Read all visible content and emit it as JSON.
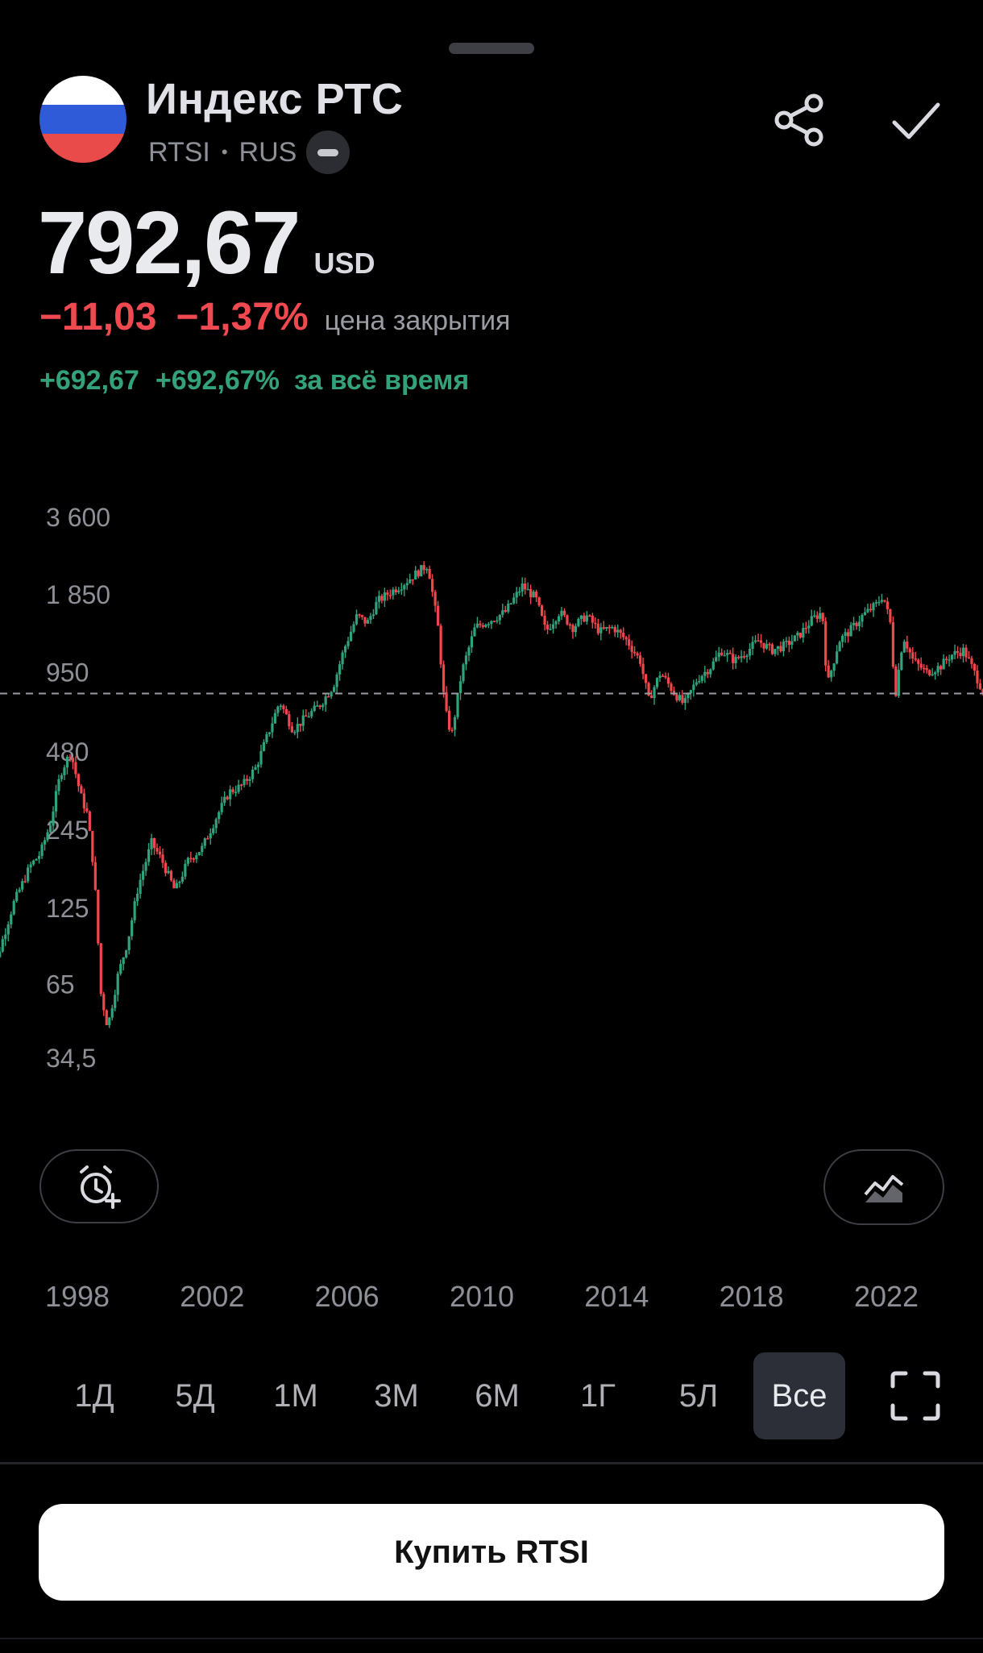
{
  "instrument": {
    "name": "Индекс РТС",
    "ticker": "RTSI",
    "separator": "•",
    "country": "RUS",
    "flag_colors": [
      "#ffffff",
      "#2f5bd8",
      "#e94a4a"
    ]
  },
  "header_actions": {
    "share_icon": "share-icon",
    "check_icon": "check-icon"
  },
  "price": {
    "value": "792,67",
    "currency": "USD"
  },
  "change": {
    "abs": "−11,03",
    "pct": "−1,37%",
    "label": "цена закрытия",
    "color": "#f0494f"
  },
  "alltime": {
    "abs": "+692,67",
    "pct": "+692,67%",
    "label": "за всё время",
    "color": "#33a27a"
  },
  "chart_data": {
    "type": "candlestick",
    "scale": "log",
    "y_ticks": [
      "3 600",
      "1 850",
      "950",
      "480",
      "245",
      "125",
      "65",
      "34,5"
    ],
    "y_tick_values": [
      3600,
      1850,
      950,
      480,
      245,
      125,
      65,
      34.5
    ],
    "x_ticks": [
      "1998",
      "2002",
      "2006",
      "2010",
      "2014",
      "2018",
      "2022"
    ],
    "reference_line": 792.67,
    "colors": {
      "up": "#2fa37d",
      "down": "#f0464c"
    },
    "series": [
      {
        "t": 1995.2,
        "v": 70
      },
      {
        "t": 1995.6,
        "v": 80
      },
      {
        "t": 1996.1,
        "v": 130
      },
      {
        "t": 1996.6,
        "v": 180
      },
      {
        "t": 1996.9,
        "v": 200
      },
      {
        "t": 1997.2,
        "v": 260
      },
      {
        "t": 1997.5,
        "v": 400
      },
      {
        "t": 1997.8,
        "v": 480
      },
      {
        "t": 1998.1,
        "v": 330
      },
      {
        "t": 1998.3,
        "v": 280
      },
      {
        "t": 1998.5,
        "v": 170
      },
      {
        "t": 1998.7,
        "v": 60
      },
      {
        "t": 1998.9,
        "v": 45
      },
      {
        "t": 1999.2,
        "v": 70
      },
      {
        "t": 1999.5,
        "v": 95
      },
      {
        "t": 1999.8,
        "v": 150
      },
      {
        "t": 2000.2,
        "v": 220
      },
      {
        "t": 2000.5,
        "v": 190
      },
      {
        "t": 2000.9,
        "v": 145
      },
      {
        "t": 2001.3,
        "v": 190
      },
      {
        "t": 2001.7,
        "v": 210
      },
      {
        "t": 2002.1,
        "v": 270
      },
      {
        "t": 2002.5,
        "v": 340
      },
      {
        "t": 2002.9,
        "v": 360
      },
      {
        "t": 2003.3,
        "v": 420
      },
      {
        "t": 2003.7,
        "v": 580
      },
      {
        "t": 2004.0,
        "v": 740
      },
      {
        "t": 2004.4,
        "v": 580
      },
      {
        "t": 2004.8,
        "v": 650
      },
      {
        "t": 2005.2,
        "v": 720
      },
      {
        "t": 2005.6,
        "v": 850
      },
      {
        "t": 2005.9,
        "v": 1150
      },
      {
        "t": 2006.3,
        "v": 1550
      },
      {
        "t": 2006.6,
        "v": 1450
      },
      {
        "t": 2006.9,
        "v": 1750
      },
      {
        "t": 2007.3,
        "v": 1900
      },
      {
        "t": 2007.7,
        "v": 2050
      },
      {
        "t": 2008.0,
        "v": 2200
      },
      {
        "t": 2008.4,
        "v": 2400
      },
      {
        "t": 2008.7,
        "v": 1400
      },
      {
        "t": 2008.9,
        "v": 700
      },
      {
        "t": 2009.1,
        "v": 550
      },
      {
        "t": 2009.4,
        "v": 950
      },
      {
        "t": 2009.8,
        "v": 1400
      },
      {
        "t": 2010.3,
        "v": 1500
      },
      {
        "t": 2010.7,
        "v": 1600
      },
      {
        "t": 2011.2,
        "v": 2000
      },
      {
        "t": 2011.6,
        "v": 1800
      },
      {
        "t": 2011.9,
        "v": 1350
      },
      {
        "t": 2012.3,
        "v": 1600
      },
      {
        "t": 2012.7,
        "v": 1400
      },
      {
        "t": 2013.1,
        "v": 1550
      },
      {
        "t": 2013.5,
        "v": 1350
      },
      {
        "t": 2013.9,
        "v": 1400
      },
      {
        "t": 2014.3,
        "v": 1250
      },
      {
        "t": 2014.7,
        "v": 1050
      },
      {
        "t": 2014.95,
        "v": 750
      },
      {
        "t": 2015.3,
        "v": 950
      },
      {
        "t": 2015.7,
        "v": 800
      },
      {
        "t": 2016.0,
        "v": 720
      },
      {
        "t": 2016.4,
        "v": 900
      },
      {
        "t": 2016.8,
        "v": 1000
      },
      {
        "t": 2017.1,
        "v": 1150
      },
      {
        "t": 2017.5,
        "v": 1050
      },
      {
        "t": 2017.9,
        "v": 1150
      },
      {
        "t": 2018.2,
        "v": 1250
      },
      {
        "t": 2018.6,
        "v": 1150
      },
      {
        "t": 2019.0,
        "v": 1200
      },
      {
        "t": 2019.4,
        "v": 1300
      },
      {
        "t": 2019.8,
        "v": 1500
      },
      {
        "t": 2020.1,
        "v": 1600
      },
      {
        "t": 2020.25,
        "v": 850
      },
      {
        "t": 2020.6,
        "v": 1250
      },
      {
        "t": 2020.9,
        "v": 1350
      },
      {
        "t": 2021.3,
        "v": 1550
      },
      {
        "t": 2021.7,
        "v": 1700
      },
      {
        "t": 2021.9,
        "v": 1850
      },
      {
        "t": 2022.15,
        "v": 1400
      },
      {
        "t": 2022.25,
        "v": 750
      },
      {
        "t": 2022.5,
        "v": 1300
      },
      {
        "t": 2022.8,
        "v": 1050
      },
      {
        "t": 2023.2,
        "v": 950
      },
      {
        "t": 2023.6,
        "v": 1000
      },
      {
        "t": 2023.9,
        "v": 1100
      },
      {
        "t": 2024.3,
        "v": 1150
      },
      {
        "t": 2024.7,
        "v": 900
      },
      {
        "t": 2024.9,
        "v": 793
      }
    ]
  },
  "chart_actions": {
    "alert_icon": "add-alarm-icon",
    "chart_type_icon": "chart-type-icon"
  },
  "periods": [
    "1Д",
    "5Д",
    "1М",
    "3М",
    "6М",
    "1Г",
    "5Л",
    "Все"
  ],
  "active_period": "Все",
  "fullscreen_icon": "fullscreen-icon",
  "buy_button": {
    "label": "Купить RTSI"
  }
}
